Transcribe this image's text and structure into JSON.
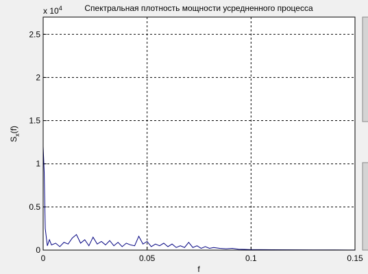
{
  "chart_data": {
    "type": "line",
    "title": "Спектральная плотность мощности усредненного процесса",
    "xlabel": "f",
    "ylabel": {
      "base": "S",
      "sub": "x",
      "rest": "(f)"
    },
    "y_exponent": {
      "base": "x 10",
      "power": "4"
    },
    "x": [
      0,
      0.0005,
      0.001,
      0.002,
      0.003,
      0.004,
      0.006,
      0.008,
      0.01,
      0.012,
      0.014,
      0.016,
      0.018,
      0.02,
      0.022,
      0.024,
      0.026,
      0.028,
      0.03,
      0.032,
      0.034,
      0.036,
      0.038,
      0.04,
      0.042,
      0.044,
      0.046,
      0.048,
      0.05,
      0.052,
      0.054,
      0.056,
      0.058,
      0.06,
      0.062,
      0.064,
      0.066,
      0.068,
      0.07,
      0.072,
      0.074,
      0.076,
      0.078,
      0.08,
      0.082,
      0.085,
      0.088,
      0.091,
      0.094,
      0.097,
      0.1,
      0.11,
      0.12,
      0.13,
      0.14,
      0.15
    ],
    "series": [
      {
        "color": "#000080",
        "values": [
          1.2,
          0.9,
          0.25,
          0.05,
          0.12,
          0.06,
          0.08,
          0.04,
          0.09,
          0.07,
          0.14,
          0.18,
          0.08,
          0.12,
          0.05,
          0.15,
          0.07,
          0.1,
          0.06,
          0.11,
          0.05,
          0.09,
          0.04,
          0.08,
          0.06,
          0.05,
          0.16,
          0.07,
          0.1,
          0.04,
          0.07,
          0.05,
          0.08,
          0.04,
          0.07,
          0.03,
          0.05,
          0.03,
          0.09,
          0.03,
          0.05,
          0.02,
          0.04,
          0.02,
          0.03,
          0.02,
          0.015,
          0.02,
          0.01,
          0.008,
          0.005,
          0.004,
          0.003,
          0.002,
          0.002,
          0.001
        ]
      }
    ],
    "xlim": [
      0,
      0.15
    ],
    "xticks": [
      0,
      0.05,
      0.1,
      0.15
    ],
    "ylim": [
      0,
      2.7
    ],
    "yticks": [
      0,
      0.5,
      1,
      1.5,
      2,
      2.5
    ],
    "grid": true
  }
}
